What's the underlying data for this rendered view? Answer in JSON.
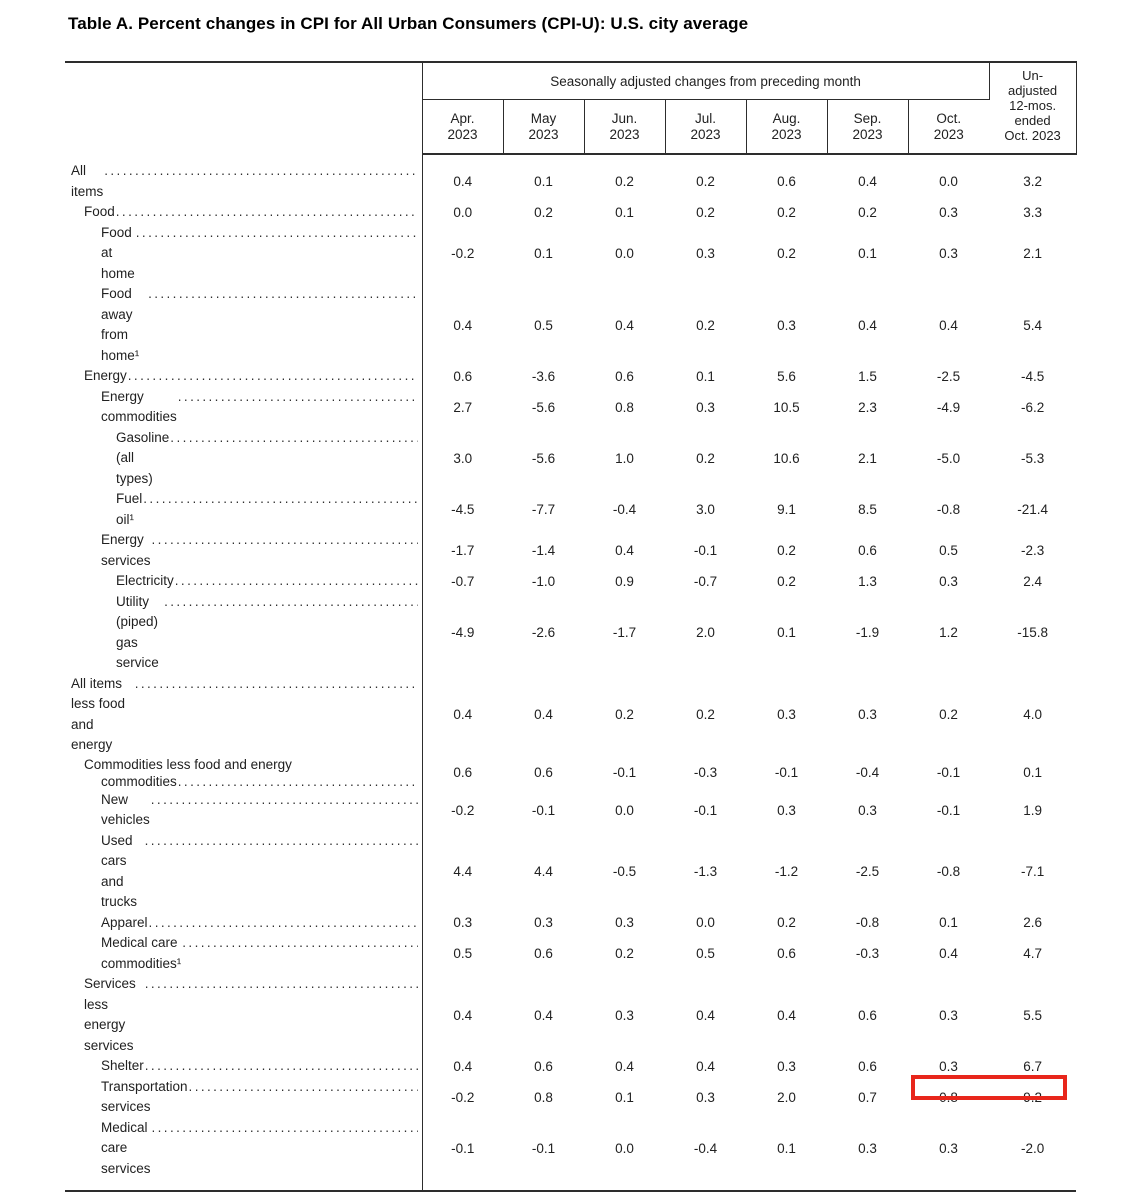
{
  "title": "Table A. Percent changes in CPI for All Urban Consumers (CPI-U): U.S. city average",
  "table": {
    "spanner_header": "Seasonally adjusted changes from preceding month",
    "unadjusted_header_lines": [
      "Un-",
      "adjusted",
      "12-mos.",
      "ended",
      "Oct. 2023"
    ],
    "month_columns": [
      {
        "month": "Apr.",
        "year": "2023"
      },
      {
        "month": "May",
        "year": "2023"
      },
      {
        "month": "Jun.",
        "year": "2023"
      },
      {
        "month": "Jul.",
        "year": "2023"
      },
      {
        "month": "Aug.",
        "year": "2023"
      },
      {
        "month": "Sep.",
        "year": "2023"
      },
      {
        "month": "Oct.",
        "year": "2023"
      }
    ],
    "rows": [
      {
        "label": "All items",
        "indent": 0,
        "values": [
          "0.4",
          "0.1",
          "0.2",
          "0.2",
          "0.6",
          "0.4",
          "0.0",
          "3.2"
        ]
      },
      {
        "label": "Food",
        "indent": 1,
        "values": [
          "0.0",
          "0.2",
          "0.1",
          "0.2",
          "0.2",
          "0.2",
          "0.3",
          "3.3"
        ]
      },
      {
        "label": "Food at home",
        "indent": 2,
        "values": [
          "-0.2",
          "0.1",
          "0.0",
          "0.3",
          "0.2",
          "0.1",
          "0.3",
          "2.1"
        ]
      },
      {
        "label": "Food away from home¹",
        "indent": 2,
        "values": [
          "0.4",
          "0.5",
          "0.4",
          "0.2",
          "0.3",
          "0.4",
          "0.4",
          "5.4"
        ]
      },
      {
        "label": "Energy",
        "indent": 1,
        "values": [
          "0.6",
          "-3.6",
          "0.6",
          "0.1",
          "5.6",
          "1.5",
          "-2.5",
          "-4.5"
        ]
      },
      {
        "label": "Energy commodities",
        "indent": 2,
        "values": [
          "2.7",
          "-5.6",
          "0.8",
          "0.3",
          "10.5",
          "2.3",
          "-4.9",
          "-6.2"
        ]
      },
      {
        "label": "Gasoline (all types)",
        "indent": 3,
        "values": [
          "3.0",
          "-5.6",
          "1.0",
          "0.2",
          "10.6",
          "2.1",
          "-5.0",
          "-5.3"
        ]
      },
      {
        "label": "Fuel oil¹",
        "indent": 3,
        "values": [
          "-4.5",
          "-7.7",
          "-0.4",
          "3.0",
          "9.1",
          "8.5",
          "-0.8",
          "-21.4"
        ]
      },
      {
        "label": "Energy services",
        "indent": 2,
        "values": [
          "-1.7",
          "-1.4",
          "0.4",
          "-0.1",
          "0.2",
          "0.6",
          "0.5",
          "-2.3"
        ]
      },
      {
        "label": "Electricity",
        "indent": 3,
        "values": [
          "-0.7",
          "-1.0",
          "0.9",
          "-0.7",
          "0.2",
          "1.3",
          "0.3",
          "2.4"
        ]
      },
      {
        "label": "Utility (piped) gas service",
        "indent": 3,
        "values": [
          "-4.9",
          "-2.6",
          "-1.7",
          "2.0",
          "0.1",
          "-1.9",
          "1.2",
          "-15.8"
        ]
      },
      {
        "label": "All items less food and energy",
        "indent": 0,
        "values": [
          "0.4",
          "0.4",
          "0.2",
          "0.2",
          "0.3",
          "0.3",
          "0.2",
          "4.0"
        ]
      },
      {
        "label": "Commodities less food and energy",
        "label2": "commodities",
        "indent": 1,
        "indent2": 2,
        "values": [
          "0.6",
          "0.6",
          "-0.1",
          "-0.3",
          "-0.1",
          "-0.4",
          "-0.1",
          "0.1"
        ]
      },
      {
        "label": "New vehicles",
        "indent": 2,
        "values": [
          "-0.2",
          "-0.1",
          "0.0",
          "-0.1",
          "0.3",
          "0.3",
          "-0.1",
          "1.9"
        ]
      },
      {
        "label": "Used cars and trucks",
        "indent": 2,
        "values": [
          "4.4",
          "4.4",
          "-0.5",
          "-1.3",
          "-1.2",
          "-2.5",
          "-0.8",
          "-7.1"
        ]
      },
      {
        "label": "Apparel",
        "indent": 2,
        "values": [
          "0.3",
          "0.3",
          "0.3",
          "0.0",
          "0.2",
          "-0.8",
          "0.1",
          "2.6"
        ]
      },
      {
        "label": "Medical care commodities¹",
        "indent": 2,
        "values": [
          "0.5",
          "0.6",
          "0.2",
          "0.5",
          "0.6",
          "-0.3",
          "0.4",
          "4.7"
        ]
      },
      {
        "label": "Services less energy services",
        "indent": 1,
        "values": [
          "0.4",
          "0.4",
          "0.3",
          "0.4",
          "0.4",
          "0.6",
          "0.3",
          "5.5"
        ]
      },
      {
        "label": "Shelter",
        "indent": 2,
        "values": [
          "0.4",
          "0.6",
          "0.4",
          "0.4",
          "0.3",
          "0.6",
          "0.3",
          "6.7"
        ]
      },
      {
        "label": "Transportation services",
        "indent": 2,
        "highlight": true,
        "values": [
          "-0.2",
          "0.8",
          "0.1",
          "0.3",
          "2.0",
          "0.7",
          "0.8",
          "9.2"
        ]
      },
      {
        "label": "Medical care services",
        "indent": 2,
        "values": [
          "-0.1",
          "-0.1",
          "0.0",
          "-0.4",
          "0.1",
          "0.3",
          "0.3",
          "-2.0"
        ]
      }
    ],
    "highlight": {
      "row_label": "Transportation services",
      "columns": [
        "Oct. 2023",
        "Un-adjusted 12-mos. ended Oct. 2023"
      ],
      "values": [
        "0.8",
        "9.2"
      ],
      "color": "#e8261b"
    }
  }
}
